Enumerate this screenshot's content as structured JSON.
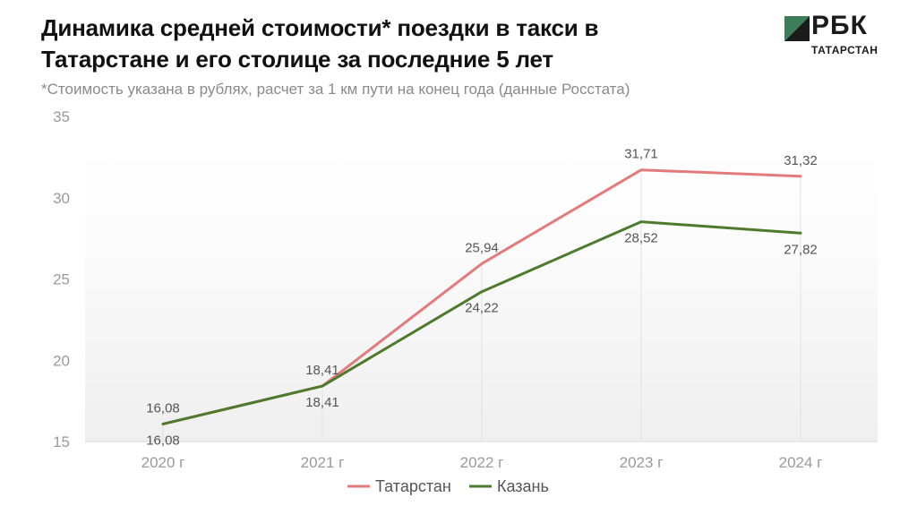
{
  "header": {
    "title_line1": "Динамика средней стоимости* поездки в такси в",
    "title_line2": "Татарстане и его столице за последние 5 лет",
    "subtitle": "*Стоимость указана в рублях, расчет за 1 км пути на конец года (данные Росстата)"
  },
  "logo": {
    "text": "РБК",
    "sub": "ТАТАРСТАН",
    "colors": {
      "light": "#3e7d5a",
      "dark": "#1b1b1b"
    }
  },
  "chart_data": {
    "type": "line",
    "categories": [
      "2020 г",
      "2021 г",
      "2022 г",
      "2023 г",
      "2024 г"
    ],
    "series": [
      {
        "name": "Татарстан",
        "color": "#e47b7b",
        "values": [
          16.08,
          18.41,
          25.94,
          31.71,
          31.32
        ],
        "labels": [
          "16,08",
          "18,41",
          "25,94",
          "31,71",
          "31,32"
        ]
      },
      {
        "name": "Казань",
        "color": "#4e7a2e",
        "values": [
          16.08,
          18.41,
          24.22,
          28.52,
          27.82
        ],
        "labels": [
          "16,08",
          "18,41",
          "24,22",
          "28,52",
          "27,82"
        ]
      }
    ],
    "ylim": [
      15,
      35
    ],
    "yticks": [
      15,
      20,
      25,
      30,
      35
    ],
    "grid": false,
    "legend": "bottom",
    "background": "gradient light grey"
  }
}
